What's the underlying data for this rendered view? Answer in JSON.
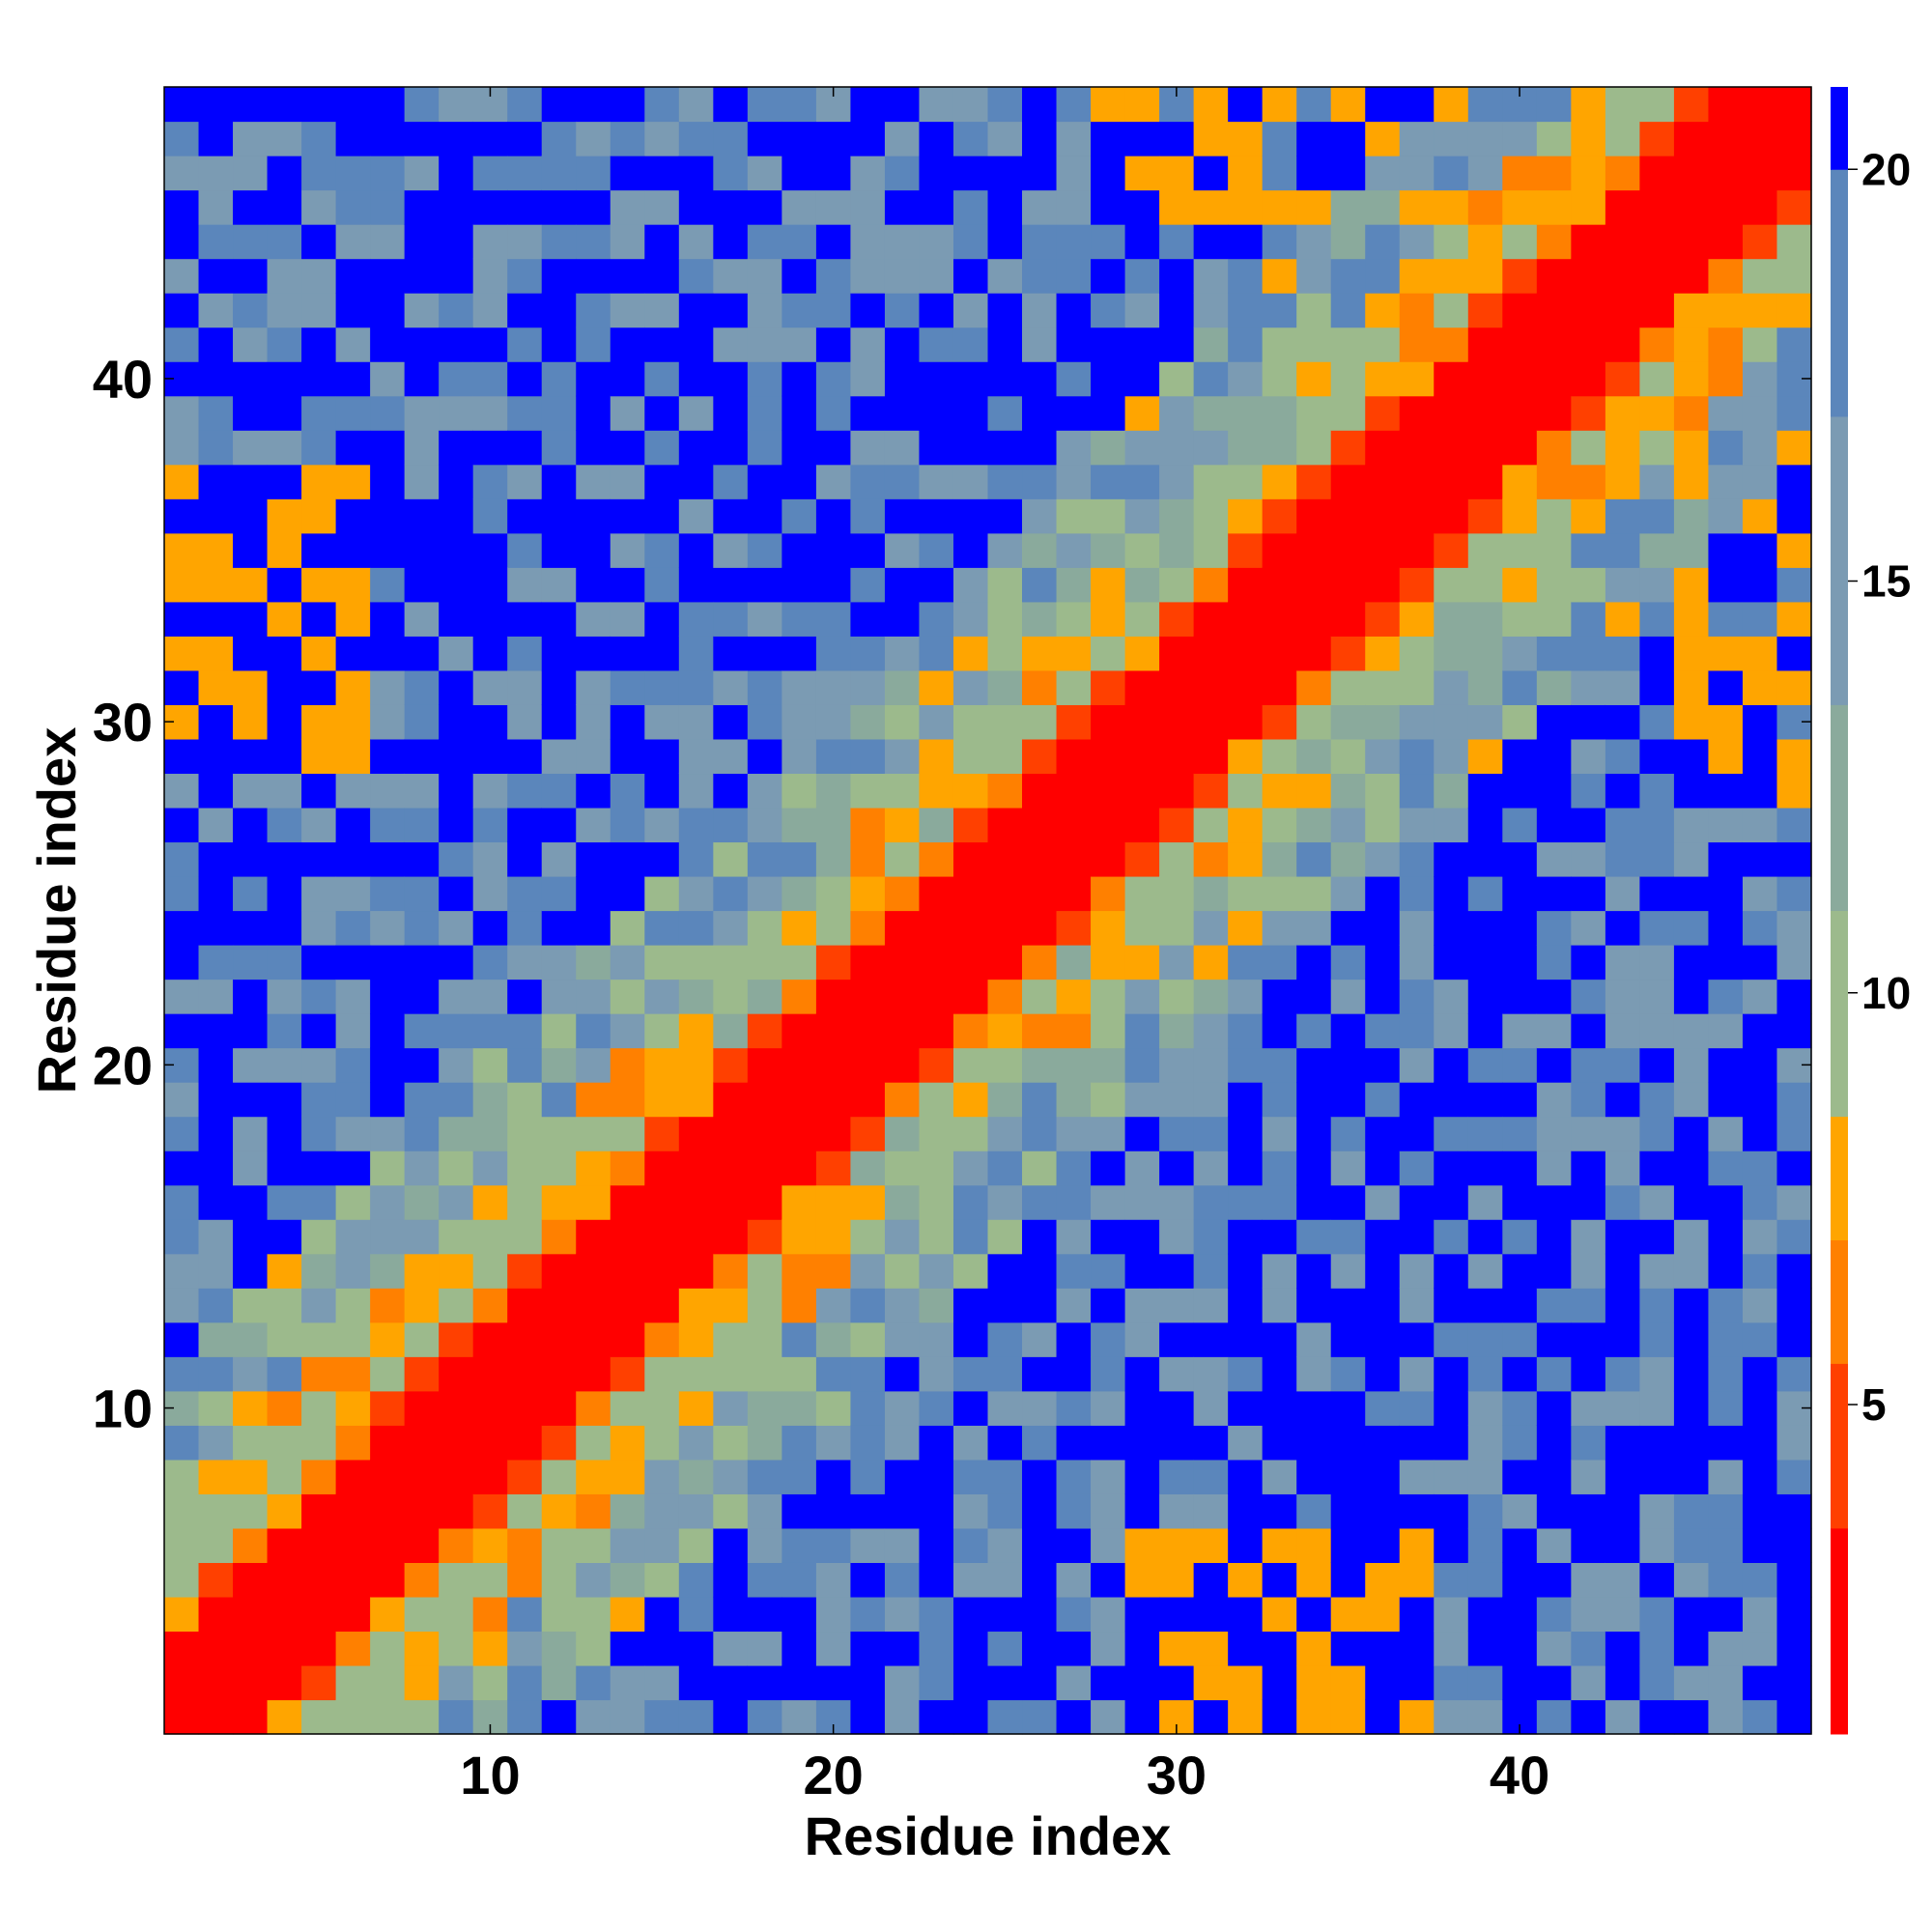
{
  "chart_data": {
    "type": "heatmap",
    "title": "",
    "xlabel": "Residue index",
    "ylabel": "Residue index",
    "xlim": [
      0.5,
      48.5
    ],
    "ylim": [
      0.5,
      48.5
    ],
    "x_ticks": [
      10,
      20,
      30,
      40
    ],
    "y_ticks": [
      10,
      20,
      30,
      40
    ],
    "colorbar": {
      "range": [
        1,
        21
      ],
      "ticks": [
        5,
        10,
        15,
        20
      ],
      "levels": [
        {
          "from": 1,
          "to": 3.5,
          "color": "#ff0000"
        },
        {
          "from": 3.5,
          "to": 5.5,
          "color": "#ff4000"
        },
        {
          "from": 5.5,
          "to": 7,
          "color": "#ff8000"
        },
        {
          "from": 7,
          "to": 8.5,
          "color": "#ffa500"
        },
        {
          "from": 8.5,
          "to": 11,
          "color": "#9cba8c"
        },
        {
          "from": 11,
          "to": 13.5,
          "color": "#8aaa9c"
        },
        {
          "from": 13.5,
          "to": 17,
          "color": "#7b9bb3"
        },
        {
          "from": 17,
          "to": 20,
          "color": "#5b86bb"
        },
        {
          "from": 20,
          "to": 21,
          "color": "#0000ff"
        }
      ]
    },
    "matrix_description": "symmetric 48x48 residue distance map; values = cutoff-binned distances",
    "grid": false,
    "colorbar_placement": "right"
  }
}
